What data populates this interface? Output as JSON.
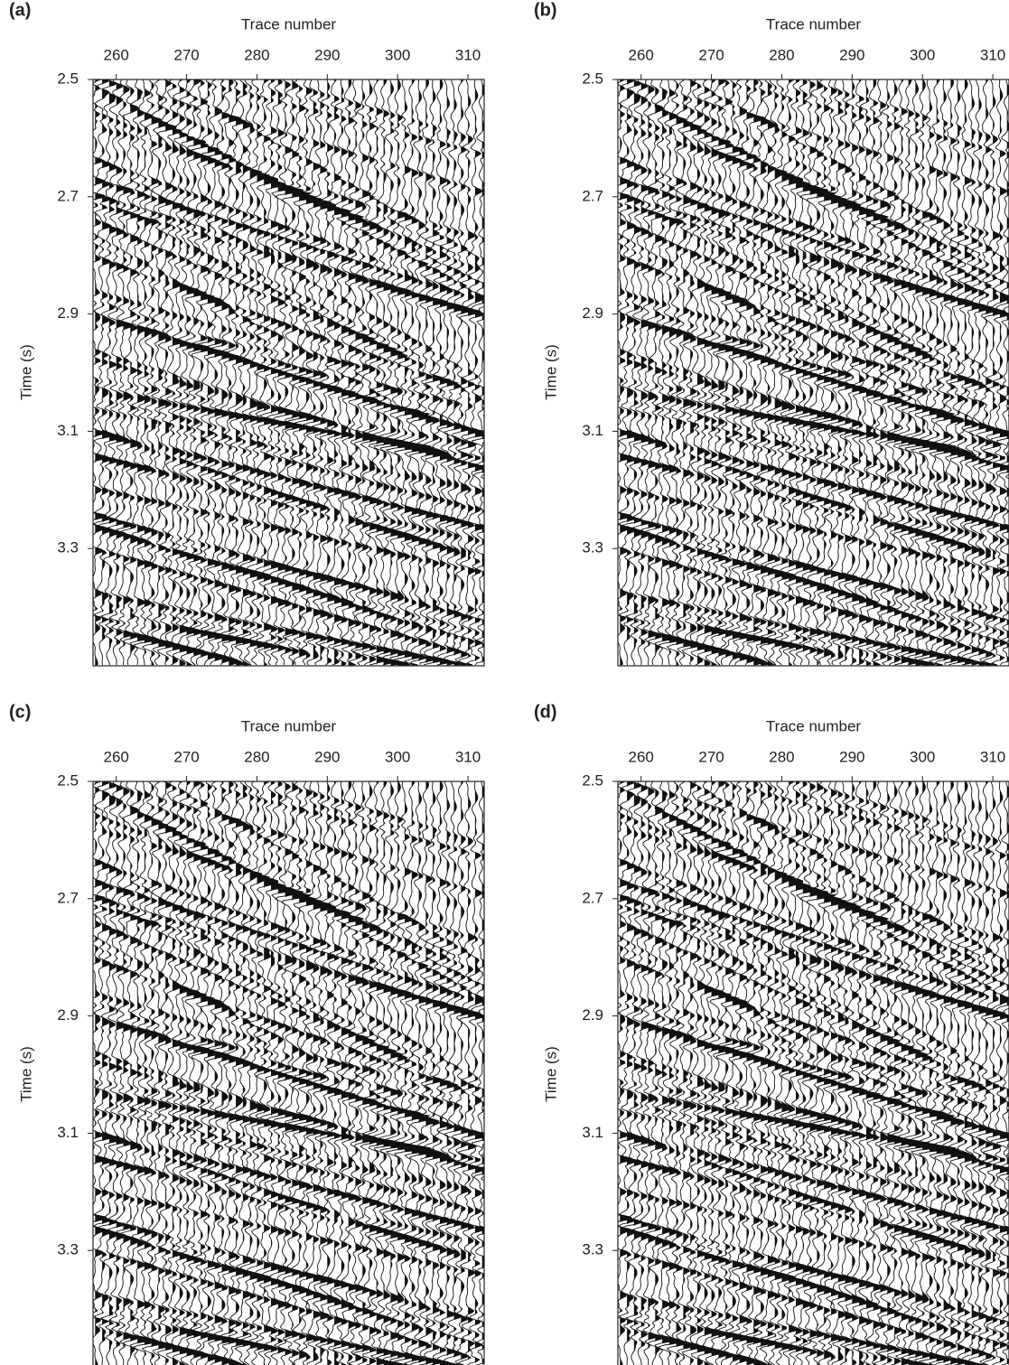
{
  "chart_data": [
    {
      "type": "seismic",
      "panel_label": "(a)",
      "xlabel": "Trace number",
      "ylabel": "Time (s)",
      "xlim": [
        256.7,
        312.3
      ],
      "ylim": [
        2.5,
        3.5
      ],
      "y_inverted": true,
      "xticks": [
        260,
        270,
        280,
        290,
        300,
        310
      ],
      "yticks": [
        2.5,
        2.7,
        2.9,
        3.1,
        3.3
      ]
    },
    {
      "type": "seismic",
      "panel_label": "(b)",
      "xlabel": "Trace number",
      "ylabel": "Time (s)",
      "xlim": [
        256.7,
        312.3
      ],
      "ylim": [
        2.5,
        3.5
      ],
      "y_inverted": true,
      "xticks": [
        260,
        270,
        280,
        290,
        300,
        310
      ],
      "yticks": [
        2.5,
        2.7,
        2.9,
        3.1,
        3.3
      ]
    },
    {
      "type": "seismic",
      "panel_label": "(c)",
      "xlabel": "Trace number",
      "ylabel": "Time (s)",
      "xlim": [
        256.7,
        312.3
      ],
      "ylim": [
        2.5,
        3.5
      ],
      "y_inverted": true,
      "xticks": [
        260,
        270,
        280,
        290,
        300,
        310
      ],
      "yticks": [
        2.5,
        2.7,
        2.9,
        3.1,
        3.3
      ]
    },
    {
      "type": "seismic",
      "panel_label": "(d)",
      "xlabel": "Trace number",
      "ylabel": "Time (s)",
      "xlim": [
        256.7,
        312.3
      ],
      "ylim": [
        2.5,
        3.5
      ],
      "y_inverted": true,
      "xticks": [
        260,
        270,
        280,
        290,
        300,
        310
      ],
      "yticks": [
        2.5,
        2.7,
        2.9,
        3.1,
        3.3
      ]
    }
  ]
}
